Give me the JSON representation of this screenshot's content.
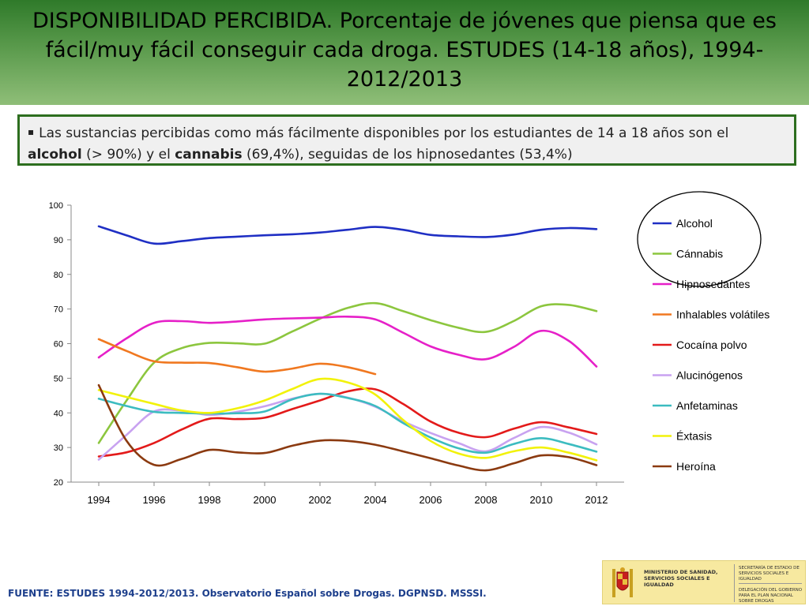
{
  "header": {
    "title": "DISPONIBILIDAD PERCIBIDA. Porcentaje de jóvenes que piensa que es fácil/muy fácil conseguir cada droga. ESTUDES (14-18 años), 1994-2012/2013"
  },
  "callout": {
    "bullet": "▪",
    "text_1": "Las sustancias percibidas como más fácilmente disponibles por los estudiantes de 14 a 18 años son el ",
    "bold_1": "alcohol",
    "text_2": " (> 90%) y el ",
    "bold_2": "cannabis",
    "text_3": " (69,4%), seguidas de los hipnosedantes (53,4%)"
  },
  "chart_data": {
    "type": "line",
    "title": "",
    "xlabel": "",
    "ylabel": "",
    "ylim": [
      20,
      100
    ],
    "yticks": [
      20,
      30,
      40,
      50,
      60,
      70,
      80,
      90,
      100
    ],
    "xlim": [
      1994,
      2012
    ],
    "xticks": [
      "1994",
      "1996",
      "1998",
      "2000",
      "2002",
      "2004",
      "2006",
      "2008",
      "2010",
      "2012"
    ],
    "grid": false,
    "legend_position": "right",
    "series": [
      {
        "name": "Alcohol",
        "color": "#1f2fc4",
        "x": [
          1994,
          1995,
          1996,
          1997,
          1998,
          1999,
          2000,
          2001,
          2002,
          2003,
          2004,
          2005,
          2006,
          2007,
          2008,
          2009,
          2010,
          2011,
          2012
        ],
        "values": [
          93.9,
          91.3,
          88.9,
          89.6,
          90.5,
          90.9,
          91.3,
          91.6,
          92.1,
          92.9,
          93.7,
          92.9,
          91.4,
          91.0,
          90.8,
          91.5,
          92.9,
          93.4,
          93.1
        ]
      },
      {
        "name": "Cánnabis",
        "color": "#8cc63e",
        "x": [
          1994,
          1995,
          1996,
          1997,
          1998,
          1999,
          2000,
          2001,
          2002,
          2003,
          2004,
          2005,
          2006,
          2007,
          2008,
          2009,
          2010,
          2011,
          2012
        ],
        "values": [
          31.3,
          43.5,
          54.5,
          58.7,
          60.2,
          60.1,
          60.0,
          63.5,
          67.2,
          70.3,
          71.7,
          69.4,
          66.8,
          64.6,
          63.4,
          66.5,
          70.8,
          71.2,
          69.4
        ]
      },
      {
        "name": "Hipnosedantes",
        "color": "#e620c8",
        "x": [
          1994,
          1995,
          1996,
          1997,
          1998,
          1999,
          2000,
          2001,
          2002,
          2003,
          2004,
          2005,
          2006,
          2007,
          2008,
          2009,
          2010,
          2011,
          2012
        ],
        "values": [
          56.0,
          61.5,
          66.0,
          66.5,
          66.0,
          66.4,
          67.0,
          67.3,
          67.5,
          67.8,
          67.0,
          63.2,
          59.2,
          56.8,
          55.5,
          59.0,
          63.7,
          60.8,
          53.4
        ]
      },
      {
        "name": "Inhalables volátiles",
        "color": "#f07820",
        "x": [
          1994,
          1995,
          1996,
          1997,
          1998,
          1999,
          2000,
          2001,
          2002,
          2003,
          2004
        ],
        "values": [
          61.3,
          57.9,
          54.9,
          54.5,
          54.4,
          53.2,
          51.9,
          52.8,
          54.2,
          53.2,
          51.2
        ]
      },
      {
        "name": "Cocaína polvo",
        "color": "#e31a1a",
        "x": [
          1994,
          1995,
          1996,
          1997,
          1998,
          1999,
          2000,
          2001,
          2002,
          2003,
          2004,
          2005,
          2006,
          2007,
          2008,
          2009,
          2010,
          2011,
          2012
        ],
        "values": [
          27.4,
          28.6,
          31.3,
          35.2,
          38.3,
          38.2,
          38.6,
          41.1,
          43.6,
          46.2,
          46.8,
          42.6,
          37.5,
          34.3,
          33.0,
          35.4,
          37.3,
          35.8,
          33.9
        ]
      },
      {
        "name": "Alucinógenos",
        "color": "#c8a2f0",
        "x": [
          1994,
          1995,
          1996,
          1997,
          1998,
          1999,
          2000,
          2001,
          2002,
          2003,
          2004,
          2005,
          2006,
          2007,
          2008,
          2009,
          2010,
          2011,
          2012
        ],
        "values": [
          26.5,
          33.6,
          40.4,
          40.6,
          39.4,
          40.3,
          41.9,
          44.1,
          45.5,
          44.4,
          41.8,
          37.6,
          34.2,
          31.3,
          28.9,
          32.7,
          35.9,
          34.3,
          30.9
        ]
      },
      {
        "name": "Anfetaminas",
        "color": "#3cbcc0",
        "x": [
          1994,
          1995,
          1996,
          1997,
          1998,
          1999,
          2000,
          2001,
          2002,
          2003,
          2004,
          2005,
          2006,
          2007,
          2008,
          2009,
          2010,
          2011,
          2012
        ],
        "values": [
          44.1,
          42.0,
          40.3,
          40.0,
          39.8,
          39.9,
          40.4,
          43.9,
          45.5,
          44.3,
          42.0,
          37.1,
          32.9,
          29.8,
          28.5,
          31.0,
          32.7,
          31.0,
          28.8
        ]
      },
      {
        "name": "Éxtasis",
        "color": "#f2f20a",
        "x": [
          1994,
          1995,
          1996,
          1997,
          1998,
          1999,
          2000,
          2001,
          2002,
          2003,
          2004,
          2005,
          2006,
          2007,
          2008,
          2009,
          2010,
          2011,
          2012
        ],
        "values": [
          46.6,
          44.6,
          42.6,
          40.7,
          40.0,
          41.3,
          43.6,
          46.9,
          49.8,
          48.8,
          45.3,
          38.0,
          31.9,
          28.3,
          27.0,
          28.9,
          30.0,
          28.5,
          26.3
        ]
      },
      {
        "name": "Heroína",
        "color": "#8b3a10",
        "x": [
          1994,
          1995,
          1996,
          1997,
          1998,
          1999,
          2000,
          2001,
          2002,
          2003,
          2004,
          2005,
          2006,
          2007,
          2008,
          2009,
          2010,
          2011,
          2012
        ],
        "values": [
          48.0,
          32.0,
          25.0,
          26.7,
          29.3,
          28.6,
          28.4,
          30.5,
          32.0,
          31.9,
          30.8,
          28.9,
          26.9,
          24.8,
          23.4,
          25.4,
          27.7,
          27.2,
          24.9
        ]
      }
    ]
  },
  "footer": {
    "source": "FUENTE: ESTUDES 1994-2012/2013. Observatorio Español sobre Drogas. DGPNSD. MSSSI.",
    "logo_ministry": "MINISTERIO DE SANIDAD, SERVICIOS SOCIALES E IGUALDAD",
    "logo_secretaria": "SECRETARÍA DE ESTADO DE SERVICIOS SOCIALES E IGUALDAD",
    "logo_delegacion": "DELEGACIÓN DEL GOBIERNO PARA EL PLAN NACIONAL SOBRE DROGAS"
  }
}
